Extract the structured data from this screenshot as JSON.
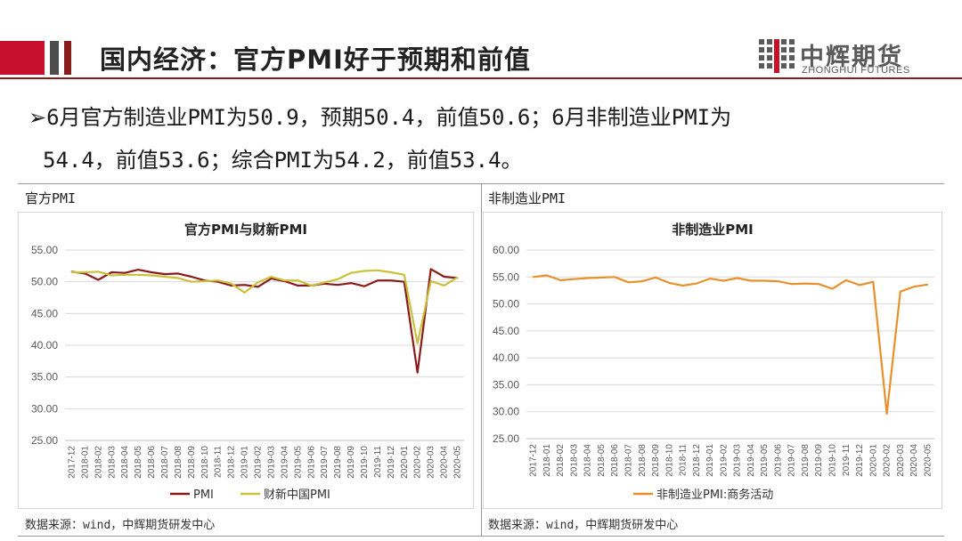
{
  "header": {
    "title": "国内经济：官方PMI好于预期和前值",
    "brand_colors": [
      "#c8102e",
      "#4d4d4d",
      "#8b1c1c"
    ]
  },
  "logo": {
    "name_cn": "中辉期货",
    "name_en": "ZHONGHUI FUTURES",
    "icon": "grid-logo-icon"
  },
  "summary": {
    "line1": "6月官方制造业PMI为50.9，预期50.4，前值50.6；6月非制造业PMI为",
    "line2": "54.4，前值53.6；综合PMI为54.2，前值53.4。"
  },
  "left_panel": {
    "label": "官方PMI",
    "source": "数据来源：wind，中辉期货研发中心"
  },
  "right_panel": {
    "label": "非制造业PMI",
    "source": "数据来源：wind，中辉期货研发中心"
  },
  "chart_data": [
    {
      "type": "line",
      "title": "官方PMI与财新PMI",
      "ylim": [
        25,
        55
      ],
      "yticks": [
        "25.00",
        "30.00",
        "35.00",
        "40.00",
        "45.00",
        "50.00",
        "55.00"
      ],
      "x": [
        "2017-12",
        "2018-01",
        "2018-02",
        "2018-03",
        "2018-04",
        "2018-05",
        "2018-06",
        "2018-07",
        "2018-08",
        "2018-09",
        "2018-10",
        "2018-11",
        "2018-12",
        "2019-01",
        "2019-02",
        "2019-03",
        "2019-04",
        "2019-05",
        "2019-06",
        "2019-07",
        "2019-08",
        "2019-09",
        "2019-10",
        "2019-11",
        "2019-12",
        "2020-01",
        "2020-02",
        "2020-03",
        "2020-04",
        "2020-05"
      ],
      "legend_position": "bottom",
      "series": [
        {
          "name": "PMI",
          "color": "#8b1a1a",
          "values": [
            51.6,
            51.3,
            50.3,
            51.5,
            51.4,
            51.9,
            51.5,
            51.2,
            51.3,
            50.8,
            50.2,
            50.0,
            49.4,
            49.5,
            49.2,
            50.5,
            50.1,
            49.4,
            49.4,
            49.7,
            49.5,
            49.8,
            49.3,
            50.2,
            50.2,
            50.0,
            35.7,
            52.0,
            50.8,
            50.6
          ]
        },
        {
          "name": "财新中国PMI",
          "color": "#c9c13a",
          "values": [
            51.5,
            51.5,
            51.6,
            51.0,
            51.1,
            51.1,
            51.0,
            50.8,
            50.6,
            50.0,
            50.1,
            50.2,
            49.7,
            48.3,
            49.9,
            50.8,
            50.2,
            50.2,
            49.4,
            49.9,
            50.4,
            51.4,
            51.7,
            51.8,
            51.5,
            51.1,
            40.3,
            50.1,
            49.4,
            50.7
          ]
        }
      ]
    },
    {
      "type": "line",
      "title": "非制造业PMI",
      "ylim": [
        25,
        60
      ],
      "yticks": [
        "25.00",
        "30.00",
        "35.00",
        "40.00",
        "45.00",
        "50.00",
        "55.00",
        "60.00"
      ],
      "x": [
        "2017-12",
        "2018-01",
        "2018-02",
        "2018-03",
        "2018-04",
        "2018-05",
        "2018-06",
        "2018-07",
        "2018-08",
        "2018-09",
        "2018-10",
        "2018-11",
        "2018-12",
        "2019-01",
        "2019-02",
        "2019-03",
        "2019-04",
        "2019-05",
        "2019-06",
        "2019-07",
        "2019-08",
        "2019-09",
        "2019-10",
        "2019-11",
        "2019-12",
        "2020-01",
        "2020-02",
        "2020-03",
        "2020-04",
        "2020-05"
      ],
      "legend_position": "bottom",
      "series": [
        {
          "name": "非制造业PMI:商务活动",
          "color": "#e8902c",
          "values": [
            55.0,
            55.3,
            54.4,
            54.6,
            54.8,
            54.9,
            55.0,
            54.0,
            54.2,
            54.9,
            53.9,
            53.4,
            53.8,
            54.7,
            54.3,
            54.8,
            54.3,
            54.3,
            54.2,
            53.7,
            53.8,
            53.7,
            52.8,
            54.4,
            53.5,
            54.1,
            29.6,
            52.3,
            53.2,
            53.6
          ]
        }
      ]
    }
  ]
}
